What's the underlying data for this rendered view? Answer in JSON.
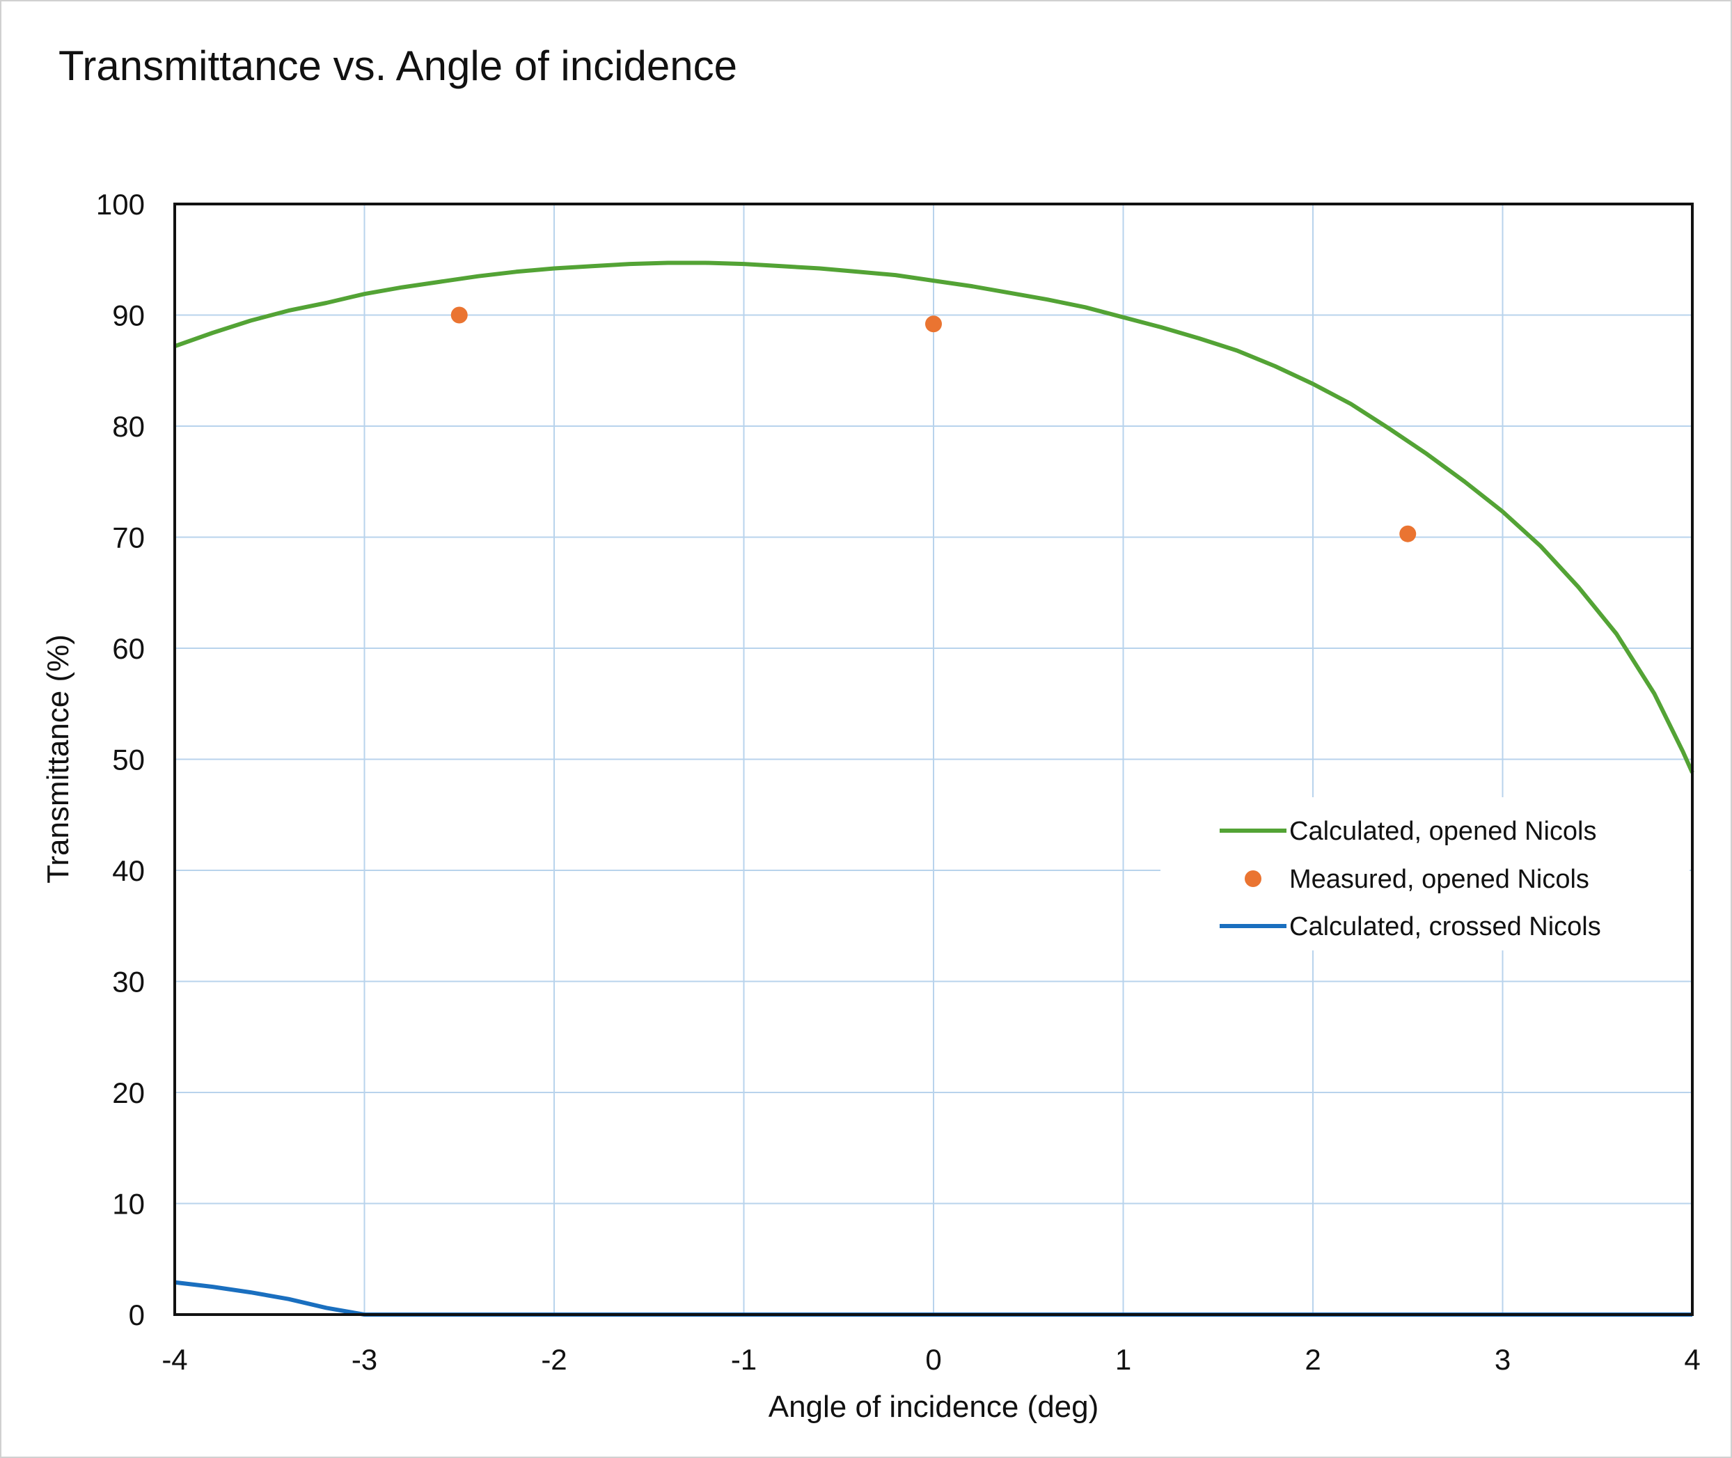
{
  "chart_data": {
    "type": "line",
    "title": "Transmittance vs. Angle of incidence",
    "xlabel": "Angle of incidence (deg)",
    "ylabel": "Transmittance (%)",
    "xlim": [
      -4,
      4
    ],
    "ylim": [
      0,
      100
    ],
    "xticks": [
      "-4",
      "-3",
      "-2",
      "-1",
      "0",
      "1",
      "2",
      "3",
      "4"
    ],
    "yticks": [
      "0",
      "10",
      "20",
      "30",
      "40",
      "50",
      "60",
      "70",
      "80",
      "90",
      "100"
    ],
    "grid": true,
    "legend_position": "right",
    "series": [
      {
        "name": "Calculated, opened Nicols",
        "kind": "line",
        "color": "#53a335",
        "points": [
          [
            -4.0,
            87.2
          ],
          [
            -3.8,
            88.4
          ],
          [
            -3.6,
            89.5
          ],
          [
            -3.4,
            90.4
          ],
          [
            -3.2,
            91.1
          ],
          [
            -3.0,
            91.9
          ],
          [
            -2.8,
            92.5
          ],
          [
            -2.6,
            93.0
          ],
          [
            -2.4,
            93.5
          ],
          [
            -2.2,
            93.9
          ],
          [
            -2.0,
            94.2
          ],
          [
            -1.8,
            94.4
          ],
          [
            -1.6,
            94.6
          ],
          [
            -1.4,
            94.7
          ],
          [
            -1.2,
            94.7
          ],
          [
            -1.0,
            94.6
          ],
          [
            -0.8,
            94.4
          ],
          [
            -0.6,
            94.2
          ],
          [
            -0.4,
            93.9
          ],
          [
            -0.2,
            93.6
          ],
          [
            0.0,
            93.1
          ],
          [
            0.2,
            92.6
          ],
          [
            0.4,
            92.0
          ],
          [
            0.6,
            91.4
          ],
          [
            0.8,
            90.7
          ],
          [
            1.0,
            89.8
          ],
          [
            1.2,
            88.9
          ],
          [
            1.4,
            87.9
          ],
          [
            1.6,
            86.8
          ],
          [
            1.8,
            85.4
          ],
          [
            2.0,
            83.8
          ],
          [
            2.2,
            82.0
          ],
          [
            2.4,
            79.8
          ],
          [
            2.6,
            77.5
          ],
          [
            2.8,
            75.0
          ],
          [
            3.0,
            72.3
          ],
          [
            3.2,
            69.2
          ],
          [
            3.4,
            65.5
          ],
          [
            3.6,
            61.3
          ],
          [
            3.8,
            55.9
          ],
          [
            3.95,
            50.7
          ],
          [
            4.0,
            48.8
          ]
        ]
      },
      {
        "name": "Measured, opened Nicols",
        "kind": "scatter",
        "color": "#ea7431",
        "points": [
          [
            -2.5,
            90.0
          ],
          [
            0.0,
            89.2
          ],
          [
            2.5,
            70.3
          ]
        ]
      },
      {
        "name": "Calculated, crossed Nicols",
        "kind": "line",
        "color": "#1a6fbf",
        "points": [
          [
            -4.0,
            2.9
          ],
          [
            -3.8,
            2.5
          ],
          [
            -3.6,
            2.0
          ],
          [
            -3.4,
            1.4
          ],
          [
            -3.2,
            0.6
          ],
          [
            -3.0,
            0.0
          ],
          [
            -2.0,
            0.0
          ],
          [
            -1.0,
            0.0
          ],
          [
            0.0,
            0.0
          ],
          [
            1.0,
            0.0
          ],
          [
            2.0,
            0.0
          ],
          [
            3.0,
            0.0
          ],
          [
            4.0,
            0.0
          ]
        ]
      }
    ]
  },
  "colors": {
    "grid": "#b8d3ec",
    "axis": "#111111",
    "frame": "#d0d0d0"
  }
}
